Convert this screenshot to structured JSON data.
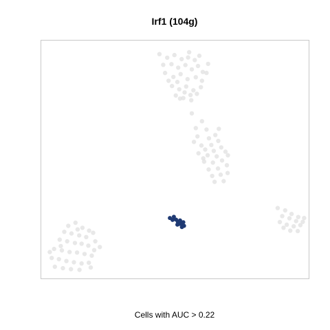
{
  "chart_data": {
    "type": "scatter",
    "title": "Irf1 (104g)",
    "xlabel": "",
    "ylabel": "",
    "caption": "Cells with AUC > 0.22",
    "axes_visible": false,
    "xlim": [
      0,
      100
    ],
    "ylim": [
      0,
      100
    ],
    "grid": false,
    "legend": "none",
    "colors": {
      "background_point": "#e0e0e0",
      "highlight_point": "#1f3a73",
      "frame": "#c8c8c8"
    },
    "series": [
      {
        "role": "background",
        "points": [
          [
            44.2,
            94.3
          ],
          [
            47.1,
            92.8
          ],
          [
            49.8,
            93.9
          ],
          [
            52.5,
            92.2
          ],
          [
            55.3,
            95.1
          ],
          [
            57.4,
            91.8
          ],
          [
            59.1,
            93.6
          ],
          [
            48.7,
            90.1
          ],
          [
            51.2,
            88.6
          ],
          [
            53.9,
            89.7
          ],
          [
            56.3,
            87.9
          ],
          [
            58.6,
            89.3
          ],
          [
            60.4,
            86.8
          ],
          [
            46.3,
            86.4
          ],
          [
            49.4,
            84.7
          ],
          [
            52.1,
            85.9
          ],
          [
            54.7,
            83.8
          ],
          [
            57.8,
            84.6
          ],
          [
            48.9,
            80.9
          ],
          [
            51.6,
            79.5
          ],
          [
            54.2,
            80.7
          ],
          [
            56.9,
            79.1
          ],
          [
            59.7,
            80.4
          ],
          [
            50.3,
            76.9
          ],
          [
            53.1,
            75.8
          ],
          [
            55.8,
            77.1
          ],
          [
            45.6,
            89.8
          ],
          [
            61.8,
            86.4
          ],
          [
            62.4,
            90.2
          ],
          [
            50.9,
            82.6
          ],
          [
            53.6,
            78.2
          ],
          [
            56.1,
            74.9
          ],
          [
            58.2,
            77.6
          ],
          [
            47.6,
            83.1
          ],
          [
            60.1,
            83.1
          ],
          [
            54.9,
            92.9
          ],
          [
            51.9,
            75.6
          ],
          [
            56.3,
            69.4
          ],
          [
            60.1,
            66.1
          ],
          [
            61.8,
            62.6
          ],
          [
            58.4,
            59.7
          ],
          [
            62.7,
            58.9
          ],
          [
            65.1,
            60.3
          ],
          [
            59.9,
            55.9
          ],
          [
            63.6,
            56.1
          ],
          [
            66.2,
            57.8
          ],
          [
            57.1,
            57.4
          ],
          [
            61.3,
            54.2
          ],
          [
            64.5,
            53.6
          ],
          [
            67.3,
            55.1
          ],
          [
            58.8,
            52.6
          ],
          [
            62.2,
            51.8
          ],
          [
            65.6,
            51.3
          ],
          [
            68.9,
            53.3
          ],
          [
            60.9,
            49.1
          ],
          [
            64.2,
            48.7
          ],
          [
            67.6,
            49.6
          ],
          [
            62.6,
            45.8
          ],
          [
            66.1,
            46.2
          ],
          [
            69.4,
            47.6
          ],
          [
            63.9,
            43.1
          ],
          [
            67.1,
            43.6
          ],
          [
            69.7,
            44.3
          ],
          [
            64.8,
            40.6
          ],
          [
            68.2,
            40.9
          ],
          [
            69.8,
            51.8
          ],
          [
            57.8,
            63.2
          ],
          [
            66.4,
            62.9
          ],
          [
            60.6,
            50.5
          ],
          [
            88.4,
            29.6
          ],
          [
            91.2,
            28.6
          ],
          [
            93.6,
            27.1
          ],
          [
            96.1,
            25.8
          ],
          [
            90.1,
            26.2
          ],
          [
            92.8,
            25.3
          ],
          [
            95.3,
            24.1
          ],
          [
            97.8,
            23.8
          ],
          [
            89.2,
            23.7
          ],
          [
            91.8,
            22.6
          ],
          [
            94.4,
            21.9
          ],
          [
            96.9,
            22.4
          ],
          [
            93.1,
            20.1
          ],
          [
            95.9,
            19.9
          ],
          [
            90.6,
            21.3
          ],
          [
            98.3,
            25.4
          ],
          [
            10.1,
            22.1
          ],
          [
            12.8,
            23.4
          ],
          [
            15.4,
            21.3
          ],
          [
            17.9,
            20.1
          ],
          [
            8.6,
            19.6
          ],
          [
            11.3,
            18.9
          ],
          [
            14.2,
            18.1
          ],
          [
            16.8,
            17.4
          ],
          [
            19.4,
            19.2
          ],
          [
            6.9,
            16.3
          ],
          [
            9.7,
            15.6
          ],
          [
            12.6,
            14.9
          ],
          [
            15.1,
            14.6
          ],
          [
            17.6,
            13.8
          ],
          [
            20.2,
            15.6
          ],
          [
            4.8,
            12.4
          ],
          [
            7.7,
            11.8
          ],
          [
            10.6,
            11.1
          ],
          [
            13.4,
            10.9
          ],
          [
            16.2,
            10.3
          ],
          [
            18.9,
            9.6
          ],
          [
            3.9,
            8.6
          ],
          [
            6.6,
            8.1
          ],
          [
            9.4,
            7.3
          ],
          [
            12.2,
            6.8
          ],
          [
            15.1,
            6.3
          ],
          [
            17.8,
            6.6
          ],
          [
            5.1,
            4.9
          ],
          [
            8.1,
            4.3
          ],
          [
            11.1,
            3.9
          ],
          [
            14.3,
            3.6
          ],
          [
            3.2,
            11.1
          ],
          [
            19.8,
            11.9
          ],
          [
            21.9,
            13.2
          ],
          [
            13.6,
            20.6
          ],
          [
            7.3,
            13.6
          ],
          [
            18.5,
            4.6
          ]
        ]
      },
      {
        "role": "highlight",
        "name": "",
        "points": [
          [
            48.1,
            25.4
          ],
          [
            49.6,
            25.9
          ],
          [
            50.4,
            24.7
          ],
          [
            51.1,
            23.8
          ],
          [
            51.9,
            24.4
          ],
          [
            52.4,
            22.9
          ],
          [
            53.1,
            23.6
          ],
          [
            53.4,
            22.1
          ],
          [
            52.6,
            21.6
          ],
          [
            50.9,
            22.6
          ],
          [
            49.1,
            24.6
          ],
          [
            51.6,
            22.9
          ]
        ]
      }
    ]
  }
}
